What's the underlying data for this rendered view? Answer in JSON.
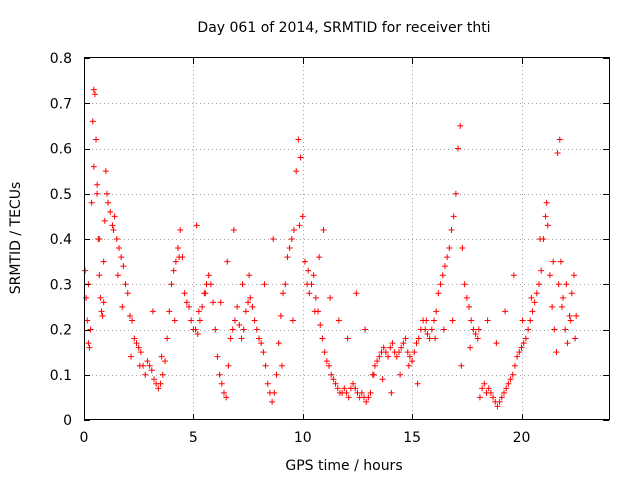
{
  "chart_data": {
    "type": "scatter",
    "title": "Day 061 of 2014, SRMTID for receiver thti",
    "xlabel": "GPS time / hours",
    "ylabel": "SRMTID / TECUs",
    "xlim": [
      0,
      24
    ],
    "ylim": [
      0,
      0.8
    ],
    "xticks": [
      0,
      5,
      10,
      15,
      20
    ],
    "xtick_labels": [
      "0",
      "5",
      "10",
      "15",
      "20"
    ],
    "yticks": [
      0,
      0.1,
      0.2,
      0.3,
      0.4,
      0.5,
      0.6,
      0.7,
      0.8
    ],
    "ytick_labels": [
      "0",
      "0.1",
      "0.2",
      "0.3",
      "0.4",
      "0.5",
      "0.6",
      "0.7",
      "0.8"
    ],
    "grid": true,
    "marker": "+",
    "marker_color": "#ff0000",
    "series": [
      {
        "name": "SRMTID",
        "x": [
          0.05,
          0.1,
          0.15,
          0.2,
          0.25,
          0.3,
          0.35,
          0.4,
          0.45,
          0.5,
          0.55,
          0.6,
          0.65,
          0.7,
          0.75,
          0.8,
          0.85,
          0.9,
          0.95,
          1.0,
          1.1,
          1.2,
          1.3,
          1.4,
          1.5,
          1.6,
          1.7,
          1.8,
          1.9,
          2.0,
          2.1,
          2.2,
          2.3,
          2.4,
          2.5,
          2.6,
          2.7,
          2.8,
          2.9,
          3.0,
          3.1,
          3.2,
          3.3,
          3.4,
          3.5,
          3.6,
          3.7,
          3.8,
          3.9,
          4.0,
          4.1,
          4.2,
          4.3,
          4.4,
          4.5,
          4.6,
          4.7,
          4.8,
          4.9,
          5.0,
          5.1,
          5.2,
          5.3,
          5.4,
          5.5,
          5.6,
          5.7,
          5.8,
          5.9,
          6.0,
          6.1,
          6.2,
          6.3,
          6.4,
          6.5,
          6.6,
          6.7,
          6.8,
          6.9,
          7.0,
          7.1,
          7.2,
          7.3,
          7.4,
          7.5,
          7.6,
          7.7,
          7.8,
          7.9,
          8.0,
          8.1,
          8.2,
          8.3,
          8.4,
          8.5,
          8.6,
          8.7,
          8.8,
          8.9,
          9.0,
          9.1,
          9.2,
          9.3,
          9.4,
          9.5,
          9.6,
          9.7,
          9.8,
          9.9,
          10.0,
          10.1,
          10.2,
          10.3,
          10.4,
          10.5,
          10.6,
          10.7,
          10.8,
          10.9,
          11.0,
          11.1,
          11.2,
          11.3,
          11.4,
          11.5,
          11.6,
          11.7,
          11.8,
          11.9,
          12.0,
          12.1,
          12.2,
          12.3,
          12.4,
          12.5,
          12.6,
          12.7,
          12.8,
          12.9,
          13.0,
          13.1,
          13.2,
          13.3,
          13.4,
          13.5,
          13.6,
          13.7,
          13.8,
          13.9,
          14.0,
          14.1,
          14.2,
          14.3,
          14.4,
          14.5,
          14.6,
          14.7,
          14.8,
          14.9,
          15.0,
          15.1,
          15.2,
          15.3,
          15.4,
          15.5,
          15.6,
          15.7,
          15.8,
          15.9,
          16.0,
          16.1,
          16.2,
          16.3,
          16.4,
          16.5,
          16.6,
          16.7,
          16.8,
          16.9,
          17.0,
          17.1,
          17.2,
          17.3,
          17.4,
          17.5,
          17.6,
          17.7,
          17.8,
          17.9,
          18.0,
          18.1,
          18.2,
          18.3,
          18.4,
          18.5,
          18.6,
          18.7,
          18.8,
          18.9,
          19.0,
          19.1,
          19.2,
          19.3,
          19.4,
          19.5,
          19.6,
          19.7,
          19.8,
          19.9,
          20.0,
          20.1,
          20.2,
          20.3,
          20.4,
          20.5,
          20.6,
          20.7,
          20.8,
          20.9,
          21.0,
          21.1,
          21.2,
          21.3,
          21.4,
          21.5,
          21.6,
          21.7,
          21.8,
          21.9,
          22.0,
          22.1,
          22.2,
          22.3,
          22.4,
          22.5,
          0.2,
          0.45,
          0.6,
          0.7,
          0.9,
          1.05,
          1.35,
          1.55,
          1.75,
          2.15,
          2.55,
          3.15,
          3.55,
          4.15,
          4.35,
          5.15,
          5.25,
          5.55,
          6.25,
          6.55,
          6.85,
          7.25,
          7.55,
          8.25,
          8.65,
          9.05,
          9.55,
          9.85,
          10.25,
          10.55,
          10.75,
          10.95,
          11.25,
          11.65,
          12.05,
          12.45,
          12.85,
          13.25,
          13.65,
          14.05,
          14.45,
          14.85,
          15.25,
          15.65,
          16.05,
          16.45,
          16.85,
          17.25,
          17.65,
          18.05,
          18.45,
          18.85,
          19.25,
          19.65,
          20.05,
          20.45,
          20.85,
          21.15,
          21.45,
          21.65,
          21.75,
          21.85,
          22.05,
          22.25,
          22.45
        ],
        "y": [
          0.33,
          0.27,
          0.22,
          0.17,
          0.16,
          0.2,
          0.48,
          0.66,
          0.73,
          0.72,
          0.62,
          0.5,
          0.4,
          0.32,
          0.27,
          0.24,
          0.23,
          0.26,
          0.44,
          0.55,
          0.48,
          0.46,
          0.43,
          0.45,
          0.4,
          0.38,
          0.36,
          0.34,
          0.3,
          0.28,
          0.23,
          0.22,
          0.18,
          0.17,
          0.16,
          0.15,
          0.12,
          0.1,
          0.13,
          0.12,
          0.11,
          0.09,
          0.08,
          0.07,
          0.08,
          0.1,
          0.13,
          0.18,
          0.24,
          0.3,
          0.33,
          0.35,
          0.38,
          0.42,
          0.36,
          0.28,
          0.26,
          0.25,
          0.22,
          0.2,
          0.2,
          0.19,
          0.22,
          0.25,
          0.28,
          0.3,
          0.32,
          0.3,
          0.26,
          0.2,
          0.14,
          0.1,
          0.08,
          0.06,
          0.05,
          0.12,
          0.18,
          0.2,
          0.22,
          0.25,
          0.21,
          0.18,
          0.2,
          0.24,
          0.26,
          0.27,
          0.25,
          0.22,
          0.2,
          0.18,
          0.17,
          0.15,
          0.12,
          0.08,
          0.06,
          0.04,
          0.06,
          0.1,
          0.17,
          0.23,
          0.28,
          0.3,
          0.36,
          0.38,
          0.4,
          0.42,
          0.55,
          0.62,
          0.58,
          0.45,
          0.35,
          0.3,
          0.28,
          0.3,
          0.32,
          0.27,
          0.24,
          0.21,
          0.18,
          0.15,
          0.13,
          0.12,
          0.1,
          0.09,
          0.08,
          0.07,
          0.06,
          0.06,
          0.07,
          0.06,
          0.05,
          0.07,
          0.08,
          0.07,
          0.06,
          0.05,
          0.06,
          0.05,
          0.04,
          0.05,
          0.06,
          0.1,
          0.12,
          0.13,
          0.14,
          0.15,
          0.16,
          0.15,
          0.14,
          0.16,
          0.17,
          0.15,
          0.14,
          0.15,
          0.16,
          0.17,
          0.18,
          0.15,
          0.14,
          0.13,
          0.15,
          0.17,
          0.18,
          0.2,
          0.22,
          0.2,
          0.19,
          0.18,
          0.2,
          0.22,
          0.24,
          0.28,
          0.3,
          0.32,
          0.34,
          0.36,
          0.38,
          0.42,
          0.45,
          0.5,
          0.6,
          0.65,
          0.38,
          0.3,
          0.27,
          0.25,
          0.22,
          0.2,
          0.19,
          0.18,
          0.05,
          0.07,
          0.08,
          0.06,
          0.07,
          0.06,
          0.05,
          0.04,
          0.03,
          0.04,
          0.05,
          0.06,
          0.07,
          0.08,
          0.09,
          0.1,
          0.12,
          0.14,
          0.15,
          0.16,
          0.17,
          0.18,
          0.2,
          0.22,
          0.24,
          0.26,
          0.28,
          0.3,
          0.33,
          0.4,
          0.45,
          0.43,
          0.32,
          0.25,
          0.2,
          0.15,
          0.3,
          0.35,
          0.27,
          0.2,
          0.17,
          0.23,
          0.28,
          0.32,
          0.23,
          0.3,
          0.56,
          0.52,
          0.4,
          0.35,
          0.5,
          0.42,
          0.32,
          0.25,
          0.14,
          0.12,
          0.24,
          0.14,
          0.22,
          0.36,
          0.43,
          0.24,
          0.28,
          0.26,
          0.35,
          0.42,
          0.3,
          0.32,
          0.3,
          0.4,
          0.12,
          0.22,
          0.43,
          0.33,
          0.24,
          0.36,
          0.42,
          0.27,
          0.22,
          0.18,
          0.28,
          0.2,
          0.1,
          0.09,
          0.06,
          0.1,
          0.12,
          0.08,
          0.22,
          0.18,
          0.2,
          0.22,
          0.12,
          0.16,
          0.2,
          0.22,
          0.17,
          0.24,
          0.32,
          0.22,
          0.27,
          0.4,
          0.48,
          0.35,
          0.59,
          0.62,
          0.25,
          0.3,
          0.22,
          0.18
        ]
      }
    ]
  }
}
